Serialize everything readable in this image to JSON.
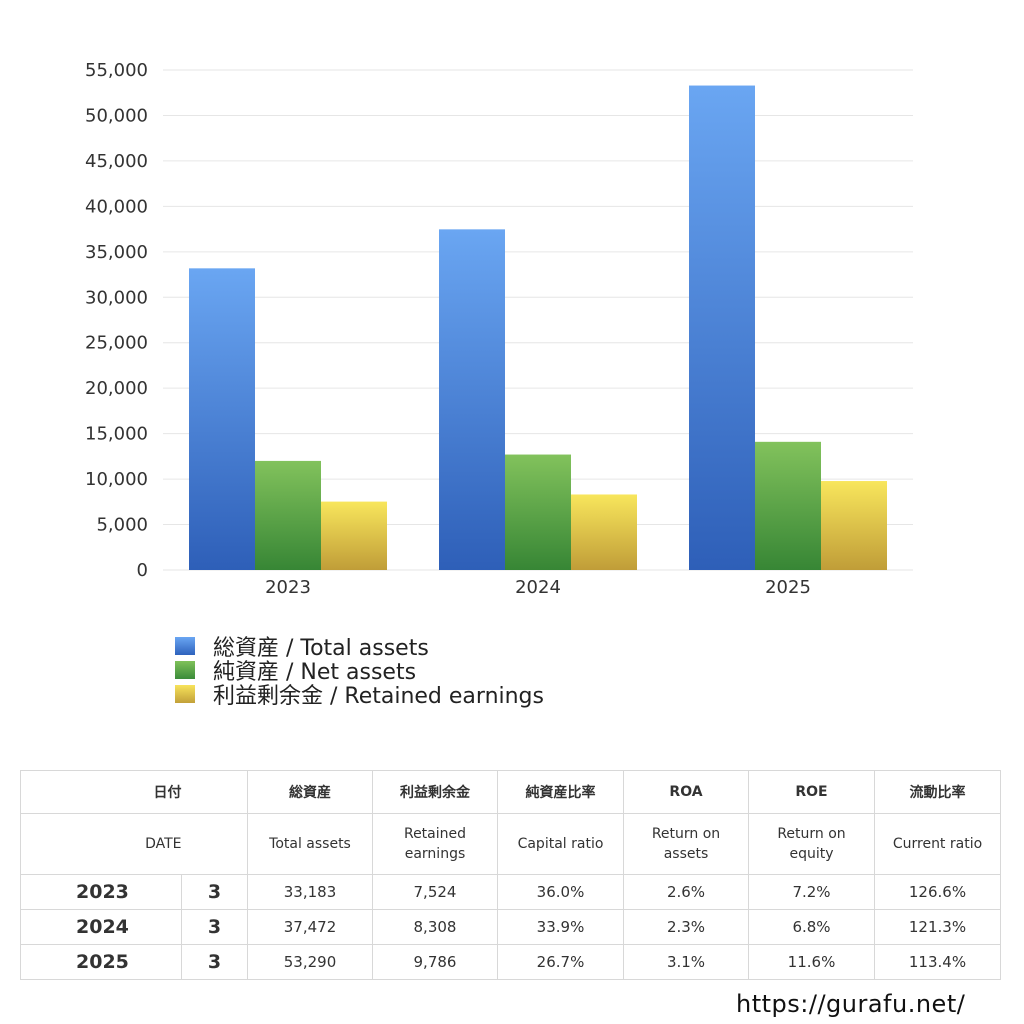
{
  "chart_data": {
    "type": "bar",
    "categories": [
      "2023",
      "2024",
      "2025"
    ],
    "series": [
      {
        "name": "総資産 / Total assets",
        "values": [
          33183,
          37472,
          53290
        ],
        "color": "#4a86dc"
      },
      {
        "name": "純資産 / Net assets",
        "values": [
          12000,
          12700,
          14100
        ],
        "color": "#5aa84a"
      },
      {
        "name": "利益剰余金 / Retained earnings",
        "values": [
          7524,
          8308,
          9786
        ],
        "color": "#e6c84a"
      }
    ],
    "y_ticks": [
      "0",
      "5,000",
      "10,000",
      "15,000",
      "20,000",
      "25,000",
      "30,000",
      "35,000",
      "40,000",
      "45,000",
      "50,000",
      "55,000"
    ],
    "ylim": [
      0,
      55000
    ],
    "title": "",
    "xlabel": "",
    "ylabel": ""
  },
  "legend": {
    "total_assets": "総資産 / Total assets",
    "net_assets": "純資産 / Net assets",
    "retained_earnings": "利益剰余金 / Retained earnings"
  },
  "table": {
    "header_jp": {
      "date": "日付",
      "total_assets": "総資産",
      "retained_earnings": "利益剰余金",
      "capital_ratio": "純資産比率",
      "roa": "ROA",
      "roe": "ROE",
      "current_ratio": "流動比率"
    },
    "header_en": {
      "date": "DATE",
      "total_assets": "Total assets",
      "retained_earnings_1": "Retained",
      "retained_earnings_2": "earnings",
      "capital_ratio": "Capital ratio",
      "roa_1": "Return on",
      "roa_2": "assets",
      "roe_1": "Return on",
      "roe_2": "equity",
      "current_ratio": "Current ratio"
    },
    "rows": [
      {
        "year": "2023",
        "month": "3",
        "total_assets": "33,183",
        "retained_earnings": "7,524",
        "capital_ratio": "36.0%",
        "roa": "2.6%",
        "roe": "7.2%",
        "current_ratio": "126.6%"
      },
      {
        "year": "2024",
        "month": "3",
        "total_assets": "37,472",
        "retained_earnings": "8,308",
        "capital_ratio": "33.9%",
        "roa": "2.3%",
        "roe": "6.8%",
        "current_ratio": "121.3%"
      },
      {
        "year": "2025",
        "month": "3",
        "total_assets": "53,290",
        "retained_earnings": "9,786",
        "capital_ratio": "26.7%",
        "roa": "3.1%",
        "roe": "11.6%",
        "current_ratio": "113.4%"
      }
    ]
  },
  "source_url": "https://gurafu.net/"
}
